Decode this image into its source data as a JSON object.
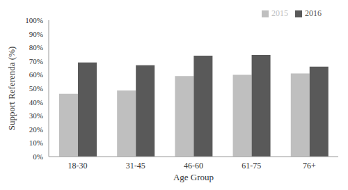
{
  "chart_data": {
    "type": "bar",
    "x_label": "Age Group",
    "y_label": "Support Referenda (%)",
    "categories": [
      "18-30",
      "31-45",
      "46-60",
      "61-75",
      "76+"
    ],
    "series": [
      {
        "name": "2015",
        "color": "#bfbfbf",
        "values": [
          46,
          48.5,
          59,
          60,
          61
        ]
      },
      {
        "name": "2016",
        "color": "#595959",
        "values": [
          69,
          67,
          74,
          74.5,
          66
        ]
      }
    ],
    "ylim": [
      0,
      100
    ],
    "yticks": [
      {
        "value": 0,
        "label": "0%"
      },
      {
        "value": 10,
        "label": "10%"
      },
      {
        "value": 20,
        "label": "20%"
      },
      {
        "value": 30,
        "label": "30%"
      },
      {
        "value": 40,
        "label": "40%"
      },
      {
        "value": 50,
        "label": "50%"
      },
      {
        "value": 60,
        "label": "60%"
      },
      {
        "value": 70,
        "label": "70%"
      },
      {
        "value": 80,
        "label": "80%"
      },
      {
        "value": 90,
        "label": "90%"
      },
      {
        "value": 100,
        "label": "100%"
      }
    ],
    "grid": false,
    "legend": "top-right"
  }
}
